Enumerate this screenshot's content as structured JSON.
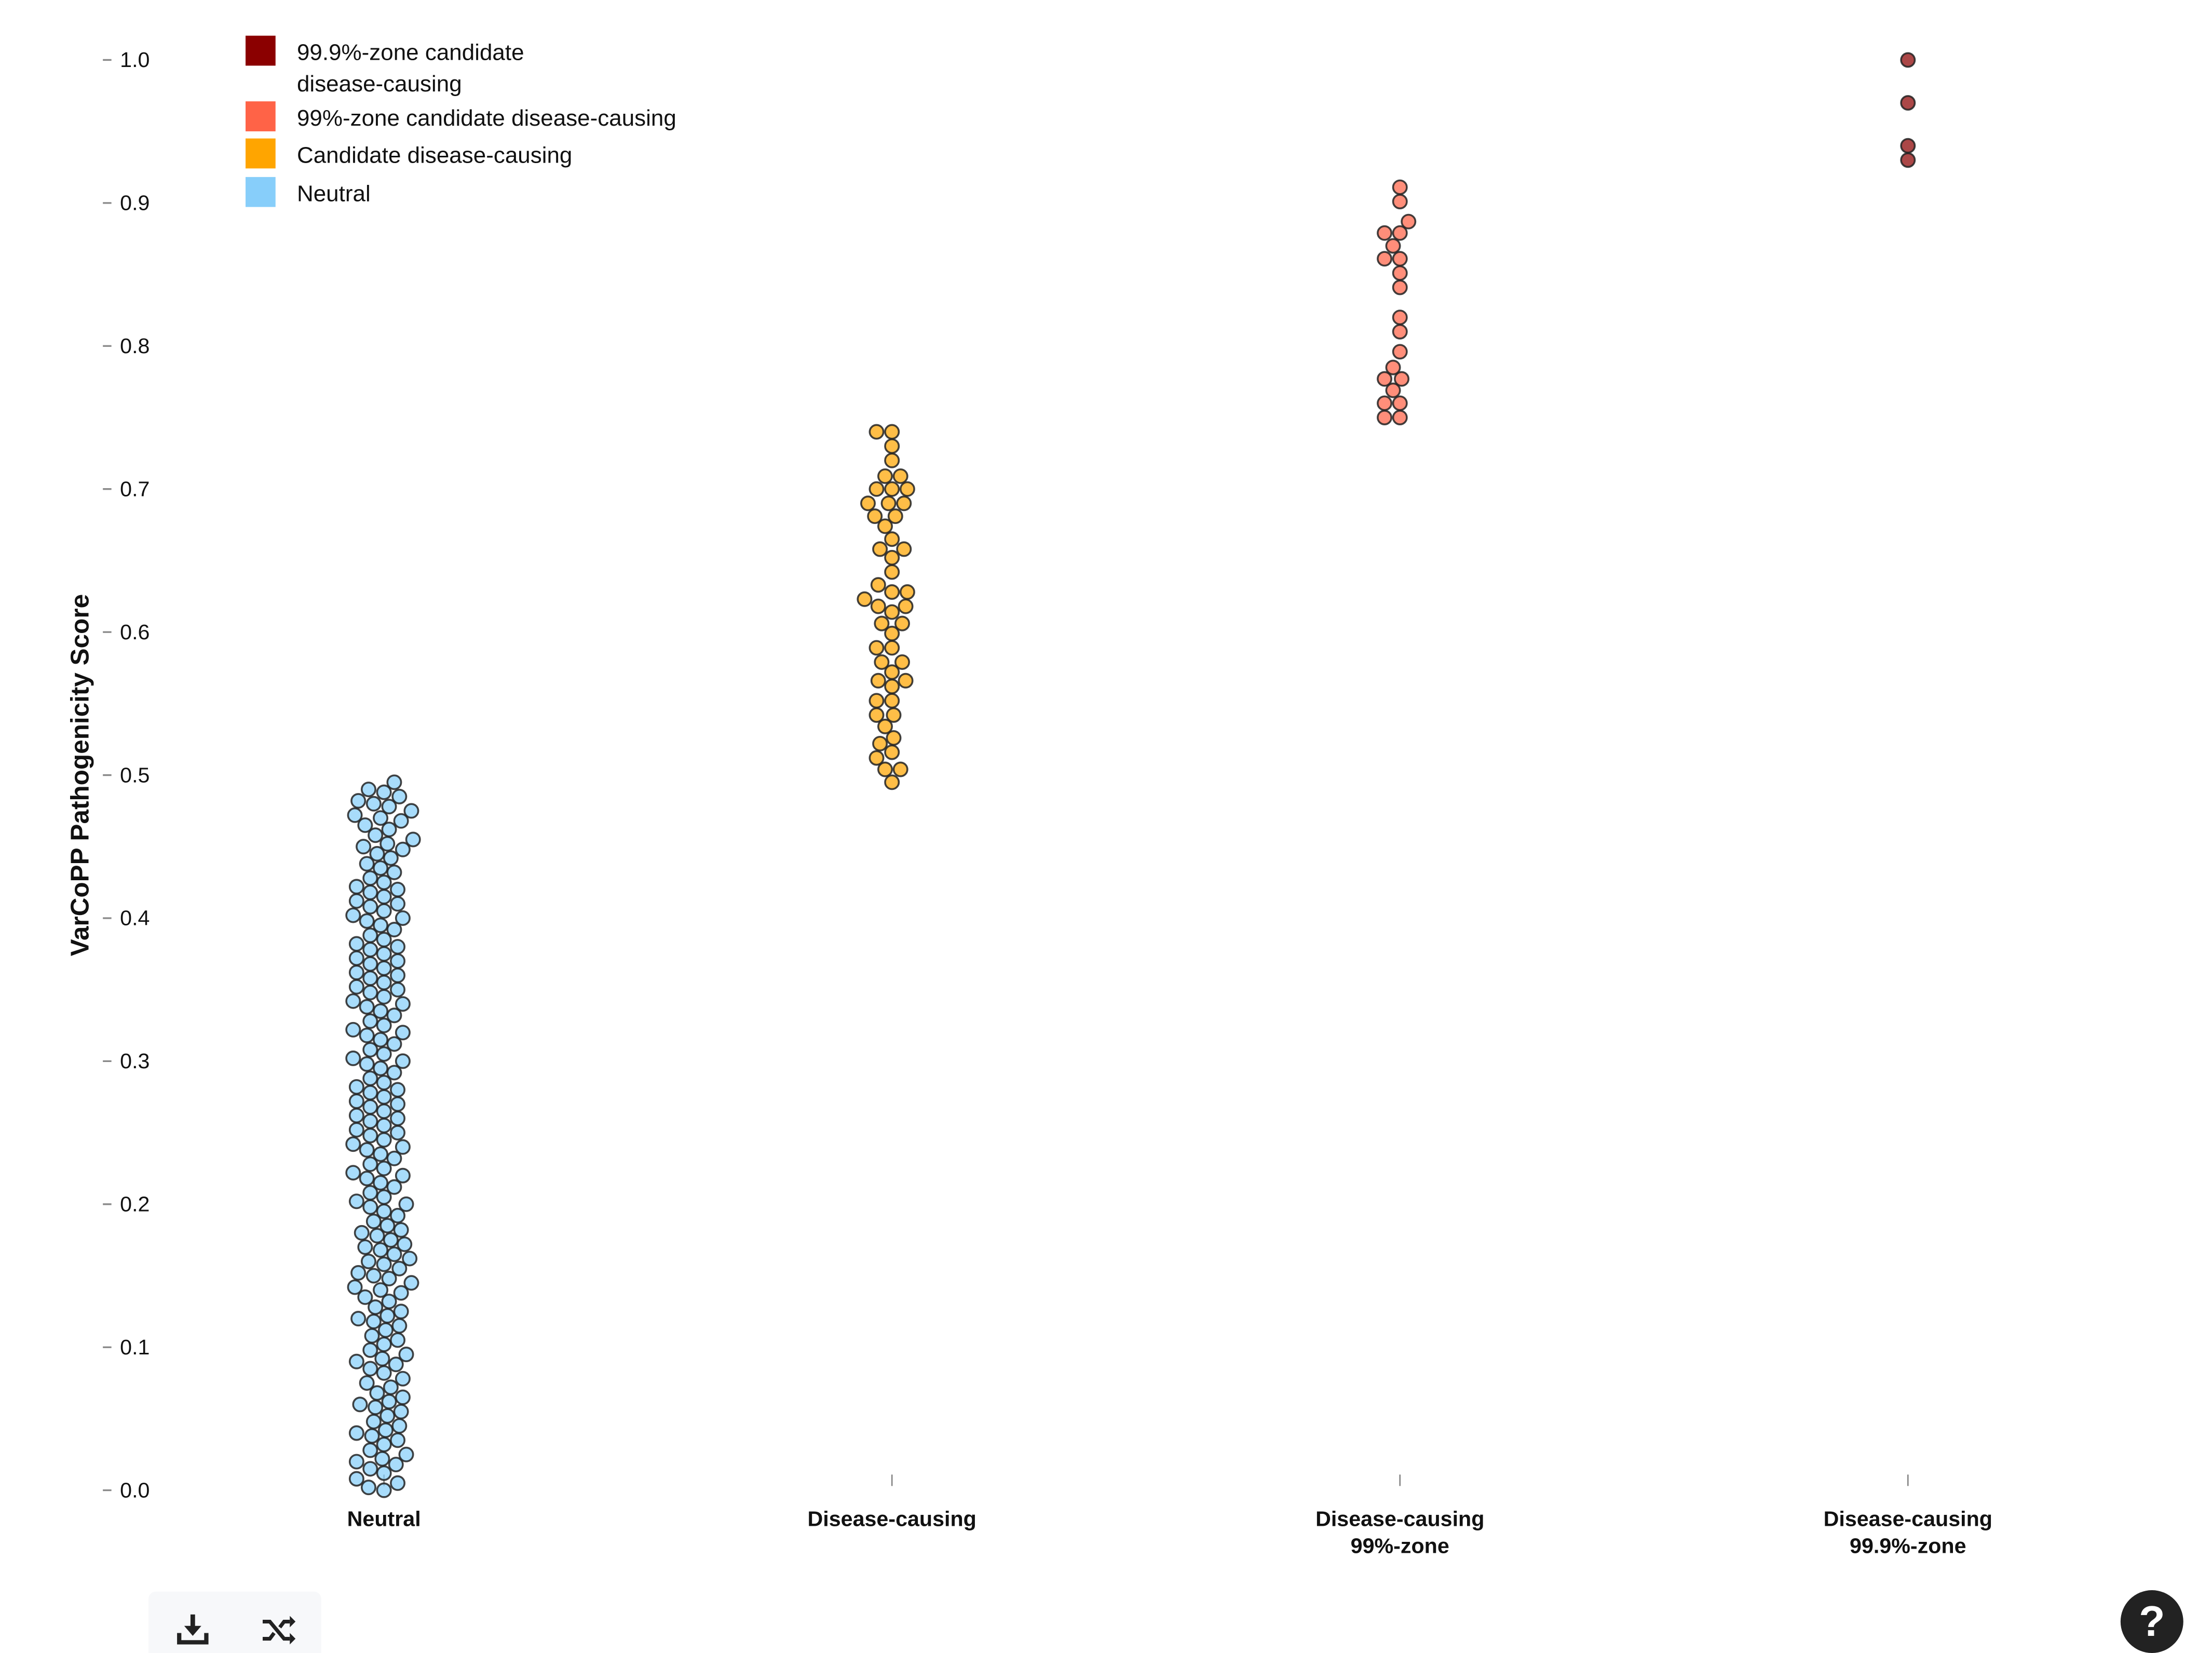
{
  "chart_data": {
    "type": "scatter",
    "subtype": "beeswarm",
    "ylabel": "VarCoPP Pathogenicity Score",
    "xlabel": "",
    "ylim": [
      0,
      1.0
    ],
    "yticks": [
      "0.0",
      "0.1",
      "0.2",
      "0.3",
      "0.4",
      "0.5",
      "0.6",
      "0.7",
      "0.8",
      "0.9",
      "1.0"
    ],
    "grid": false,
    "legend_placement": "top-left",
    "categories": [
      {
        "label_lines": [
          "Neutral"
        ]
      },
      {
        "label_lines": [
          "Disease-causing"
        ]
      },
      {
        "label_lines": [
          "Disease-causing",
          "99%-zone"
        ]
      },
      {
        "label_lines": [
          "Disease-causing",
          "99.9%-zone"
        ]
      }
    ],
    "legend": [
      {
        "label_lines": [
          "99.9%-zone candidate",
          "disease-causing"
        ],
        "color": "#8b0000"
      },
      {
        "label_lines": [
          "99%-zone candidate disease-causing"
        ],
        "color": "#ff6347"
      },
      {
        "label_lines": [
          "Candidate disease-causing"
        ],
        "color": "#ffa500"
      },
      {
        "label_lines": [
          "Neutral"
        ],
        "color": "#87cefa"
      }
    ],
    "series": [
      {
        "category": 0,
        "color": "#87cefa",
        "values": [
          0.0,
          0.002,
          0.005,
          0.008,
          0.012,
          0.015,
          0.018,
          0.02,
          0.022,
          0.025,
          0.028,
          0.032,
          0.035,
          0.038,
          0.04,
          0.042,
          0.045,
          0.048,
          0.052,
          0.055,
          0.058,
          0.06,
          0.062,
          0.065,
          0.068,
          0.072,
          0.075,
          0.078,
          0.082,
          0.085,
          0.088,
          0.09,
          0.092,
          0.095,
          0.098,
          0.102,
          0.105,
          0.108,
          0.112,
          0.115,
          0.118,
          0.12,
          0.122,
          0.125,
          0.128,
          0.132,
          0.135,
          0.138,
          0.14,
          0.142,
          0.145,
          0.148,
          0.15,
          0.152,
          0.155,
          0.158,
          0.16,
          0.162,
          0.165,
          0.168,
          0.17,
          0.172,
          0.175,
          0.178,
          0.18,
          0.182,
          0.185,
          0.188,
          0.192,
          0.195,
          0.198,
          0.2,
          0.202,
          0.205,
          0.208,
          0.212,
          0.215,
          0.218,
          0.22,
          0.222,
          0.225,
          0.228,
          0.232,
          0.235,
          0.238,
          0.24,
          0.242,
          0.245,
          0.248,
          0.25,
          0.252,
          0.255,
          0.258,
          0.26,
          0.262,
          0.265,
          0.268,
          0.27,
          0.272,
          0.275,
          0.278,
          0.28,
          0.282,
          0.285,
          0.288,
          0.292,
          0.295,
          0.298,
          0.3,
          0.302,
          0.305,
          0.308,
          0.312,
          0.315,
          0.318,
          0.32,
          0.322,
          0.325,
          0.328,
          0.332,
          0.335,
          0.338,
          0.34,
          0.342,
          0.345,
          0.348,
          0.35,
          0.352,
          0.355,
          0.358,
          0.36,
          0.362,
          0.365,
          0.368,
          0.37,
          0.372,
          0.375,
          0.378,
          0.38,
          0.382,
          0.385,
          0.388,
          0.392,
          0.395,
          0.398,
          0.4,
          0.402,
          0.405,
          0.408,
          0.41,
          0.412,
          0.415,
          0.418,
          0.42,
          0.422,
          0.425,
          0.428,
          0.432,
          0.435,
          0.438,
          0.442,
          0.445,
          0.448,
          0.45,
          0.452,
          0.455,
          0.458,
          0.462,
          0.465,
          0.468,
          0.47,
          0.472,
          0.475,
          0.478,
          0.48,
          0.482,
          0.485,
          0.488,
          0.49,
          0.495
        ]
      },
      {
        "category": 1,
        "color": "#ffa500",
        "values": [
          0.74,
          0.74,
          0.73,
          0.72,
          0.709,
          0.709,
          0.7,
          0.7,
          0.7,
          0.69,
          0.69,
          0.69,
          0.681,
          0.681,
          0.674,
          0.665,
          0.658,
          0.658,
          0.652,
          0.642,
          0.633,
          0.628,
          0.628,
          0.623,
          0.618,
          0.618,
          0.614,
          0.606,
          0.606,
          0.599,
          0.589,
          0.589,
          0.579,
          0.579,
          0.572,
          0.566,
          0.566,
          0.562,
          0.552,
          0.552,
          0.542,
          0.542,
          0.534,
          0.526,
          0.522,
          0.516,
          0.512,
          0.504,
          0.504,
          0.495
        ]
      },
      {
        "category": 2,
        "color": "#ff6347",
        "values": [
          0.911,
          0.901,
          0.887,
          0.879,
          0.879,
          0.87,
          0.861,
          0.861,
          0.851,
          0.841,
          0.82,
          0.81,
          0.796,
          0.785,
          0.777,
          0.777,
          0.769,
          0.76,
          0.76,
          0.75,
          0.75
        ]
      },
      {
        "category": 3,
        "color": "#8b0000",
        "values": [
          1.0,
          0.97,
          0.94,
          0.93
        ]
      }
    ]
  },
  "toolbar": {
    "download_icon": "download-icon",
    "shuffle_icon": "shuffle-icon",
    "help_icon": "help-icon",
    "help_label": "?"
  }
}
